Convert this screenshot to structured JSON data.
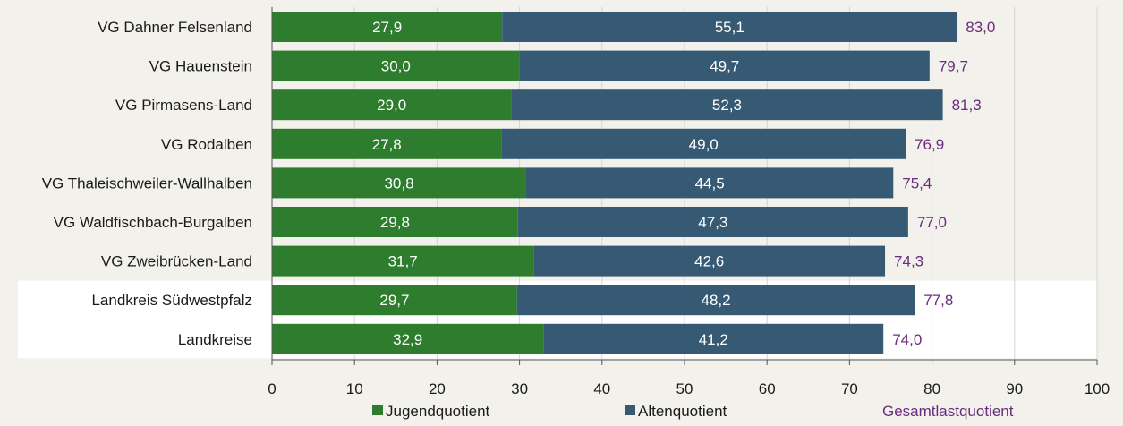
{
  "chart_data": {
    "type": "bar",
    "orientation": "horizontal",
    "stacked": true,
    "categories": [
      "VG Dahner Felsenland",
      "VG Hauenstein",
      "VG Pirmasens-Land",
      "VG Rodalben",
      "VG Thaleischweiler-Wallhalben",
      "VG Waldfischbach-Burgalben",
      "VG Zweibrücken-Land",
      "Landkreis Südwestpfalz",
      "Landkreise"
    ],
    "highlighted_categories": [
      "Landkreis Südwestpfalz",
      "Landkreise"
    ],
    "series": [
      {
        "name": "Jugendquotient",
        "color": "#2e7d2e",
        "values": [
          27.9,
          30.0,
          29.0,
          27.8,
          30.8,
          29.8,
          31.7,
          29.7,
          32.9
        ],
        "labels": [
          "27,9",
          "30,0",
          "29,0",
          "27,8",
          "30,8",
          "29,8",
          "31,7",
          "29,7",
          "32,9"
        ]
      },
      {
        "name": "Altenquotient",
        "color": "#365a73",
        "values": [
          55.1,
          49.7,
          52.3,
          49.0,
          44.5,
          47.3,
          42.6,
          48.2,
          41.2
        ],
        "labels": [
          "55,1",
          "49,7",
          "52,3",
          "49,0",
          "44,5",
          "47,3",
          "42,6",
          "48,2",
          "41,2"
        ]
      }
    ],
    "totals": {
      "name": "Gesamtlastquotient",
      "color": "#6b2c7e",
      "values": [
        83.0,
        79.7,
        81.3,
        76.9,
        75.4,
        77.0,
        74.3,
        77.8,
        74.0
      ],
      "labels": [
        "83,0",
        "79,7",
        "81,3",
        "76,9",
        "75,4",
        "77,0",
        "74,3",
        "77,8",
        "74,0"
      ]
    },
    "xlim": [
      0,
      100
    ],
    "xticks": [
      0,
      10,
      20,
      30,
      40,
      50,
      60,
      70,
      80,
      90,
      100
    ],
    "grid": true,
    "legend_position": "bottom",
    "title": "",
    "xlabel": "",
    "ylabel": ""
  }
}
